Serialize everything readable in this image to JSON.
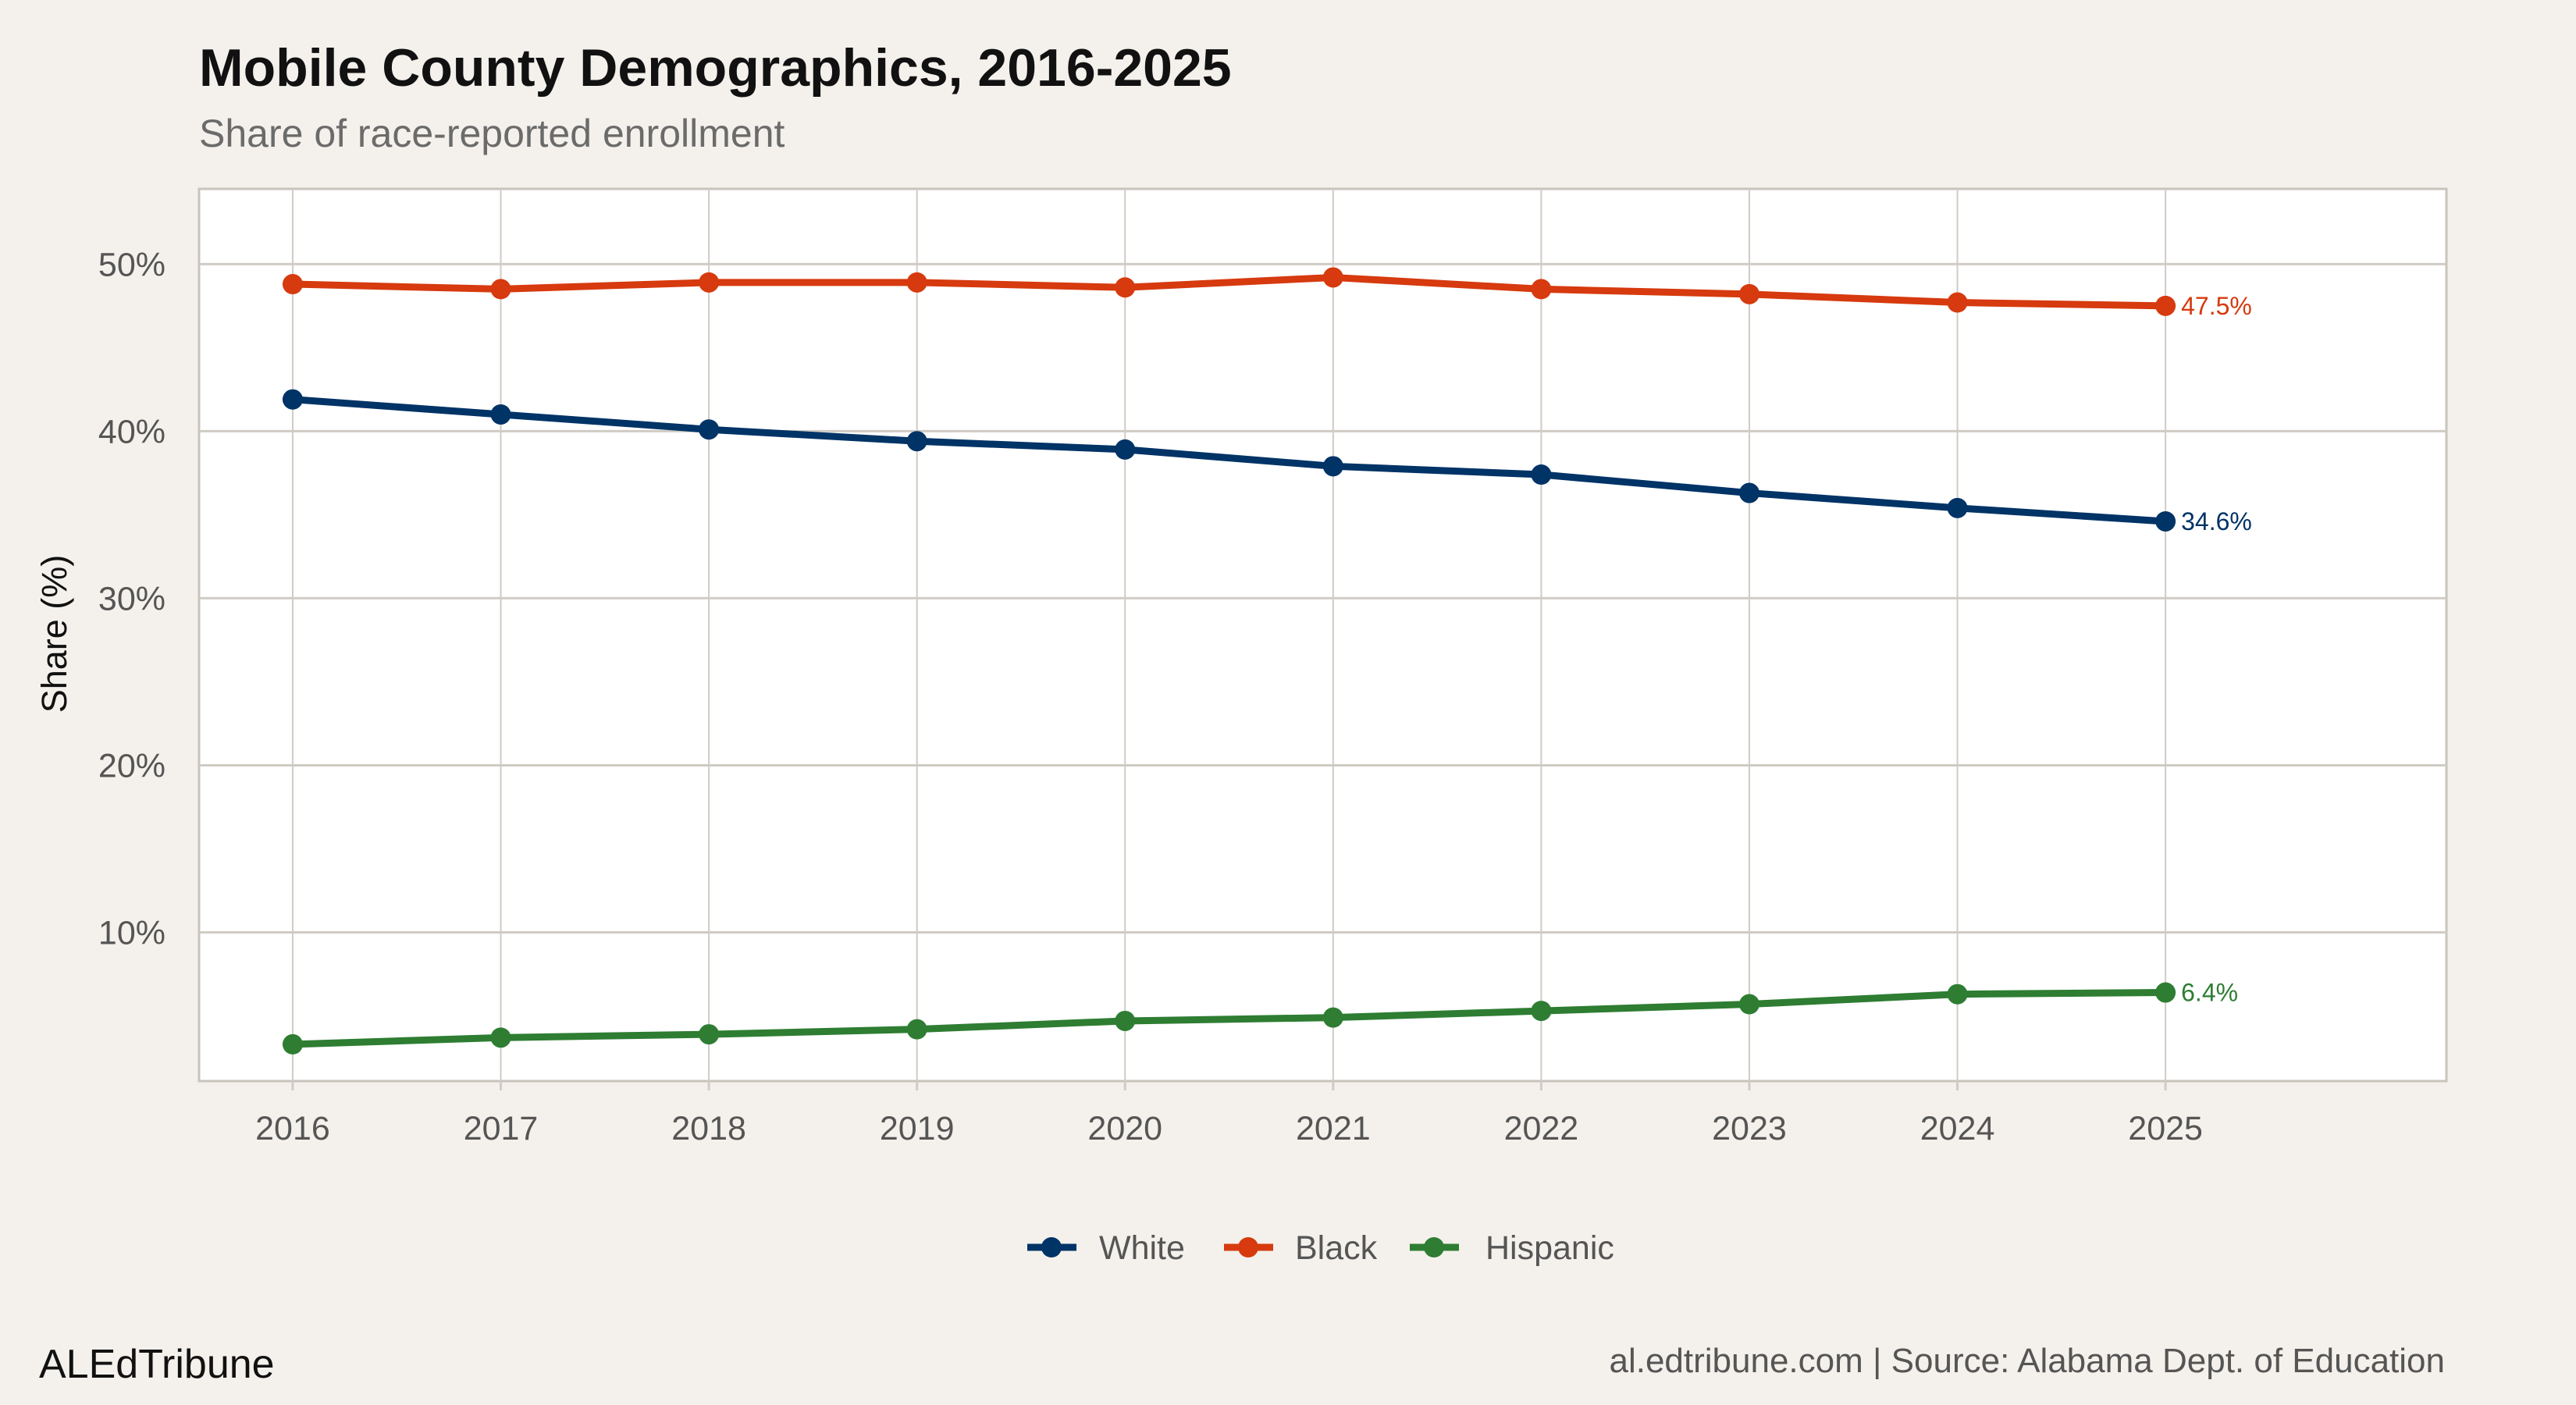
{
  "chart_data": {
    "type": "line",
    "title": "Mobile County Demographics, 2016-2025",
    "subtitle": "Share of race-reported enrollment",
    "xlabel": "",
    "ylabel": "Share (%)",
    "x": [
      2016,
      2017,
      2018,
      2019,
      2020,
      2021,
      2022,
      2023,
      2024,
      2025
    ],
    "x_tick_labels": [
      "2016",
      "2017",
      "2018",
      "2019",
      "2020",
      "2021",
      "2022",
      "2023",
      "2024",
      "2025"
    ],
    "y_ticks": [
      10,
      20,
      30,
      40,
      50
    ],
    "y_tick_labels": [
      "10%",
      "20%",
      "30%",
      "40%",
      "50%"
    ],
    "xlim": [
      2015.55,
      2026.35
    ],
    "ylim": [
      1.1,
      54.5
    ],
    "grid": true,
    "legend_position": "bottom",
    "series": [
      {
        "name": "White",
        "color": "#003366",
        "values": [
          41.9,
          41.0,
          40.1,
          39.4,
          38.9,
          37.9,
          37.4,
          36.3,
          35.4,
          34.6
        ],
        "end_label": "34.6%"
      },
      {
        "name": "Black",
        "color": "#d63a0e",
        "values": [
          48.8,
          48.5,
          48.9,
          48.9,
          48.6,
          49.2,
          48.5,
          48.2,
          47.7,
          47.5
        ],
        "end_label": "47.5%"
      },
      {
        "name": "Hispanic",
        "color": "#2e7d32",
        "values": [
          3.3,
          3.7,
          3.9,
          4.2,
          4.7,
          4.9,
          5.3,
          5.7,
          6.3,
          6.4
        ],
        "end_label": "6.4%"
      }
    ]
  },
  "footer": {
    "brand": "ALEdTribune",
    "source": "al.edtribune.com | Source: Alabama Dept. of Education"
  },
  "colors": {
    "background": "#f4f1ec",
    "panel": "#ffffff",
    "grid": "#d0ccc4"
  }
}
